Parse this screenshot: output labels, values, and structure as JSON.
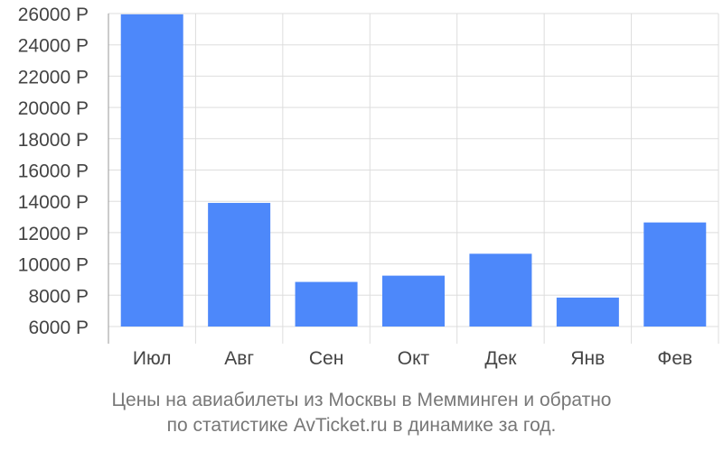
{
  "chart_data": {
    "type": "bar",
    "categories": [
      "Июл",
      "Авг",
      "Сен",
      "Окт",
      "Дек",
      "Янв",
      "Фев"
    ],
    "values": [
      25950,
      13900,
      8850,
      9250,
      10650,
      7850,
      12650
    ],
    "ylim": [
      6000,
      26000
    ],
    "yticks": [
      "26000 Р",
      "24000 Р",
      "22000 Р",
      "20000 Р",
      "18000 Р",
      "16000 Р",
      "14000 Р",
      "12000 Р",
      "10000 Р",
      "8000 Р",
      "6000 Р"
    ],
    "ytick_values": [
      26000,
      24000,
      22000,
      20000,
      18000,
      16000,
      14000,
      12000,
      10000,
      8000,
      6000
    ],
    "grid": true,
    "bar_color": "#4d88fa",
    "grid_color": "#dddddd",
    "axis_color": "#999999",
    "label_color": "#444444"
  },
  "caption": {
    "line1": "Цены на авиабилеты из Москвы в Мемминген и обратно",
    "line2": "по статистике AvTicket.ru в динамике за год."
  }
}
